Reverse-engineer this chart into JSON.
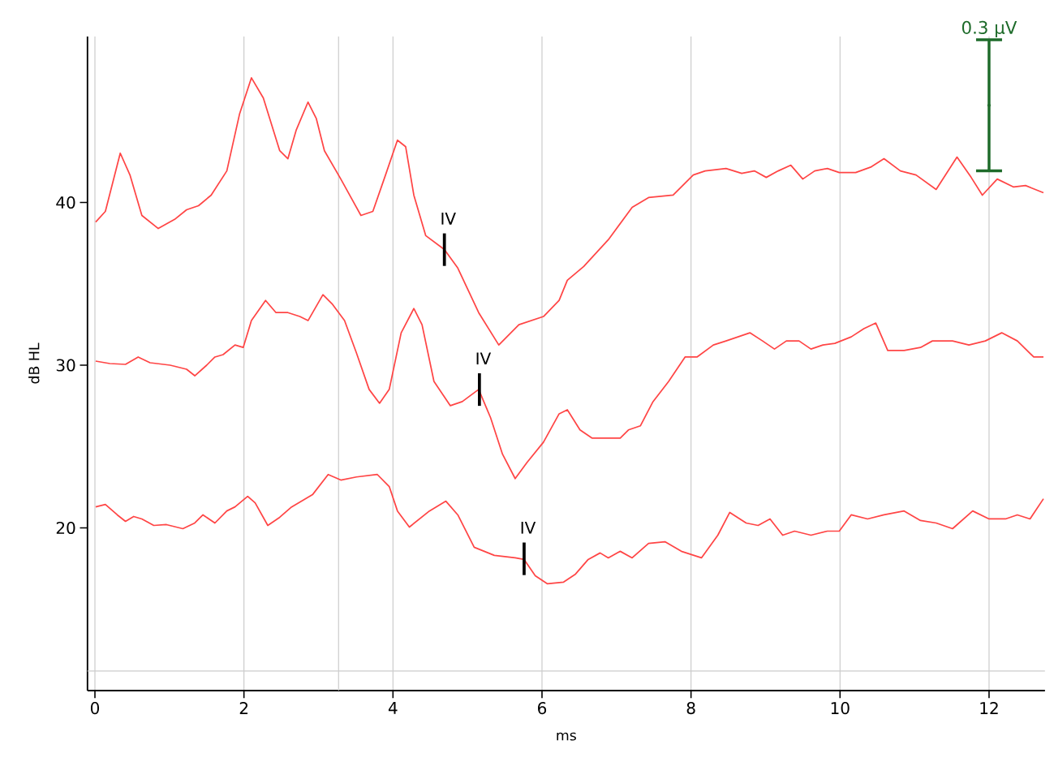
{
  "chart_data": {
    "type": "line",
    "xlabel": "ms",
    "ylabel": "dB HL",
    "xlim": [
      -0.1,
      12.75
    ],
    "ylim": [
      10,
      50.2
    ],
    "xticks": [
      0,
      2,
      4,
      6,
      8,
      10,
      12
    ],
    "yticks": [
      20,
      30,
      40
    ],
    "grid": "x",
    "marker": "none",
    "line_style": "solid",
    "series": [
      {
        "color": "#ff4545",
        "x": [
          0.01,
          0.14,
          0.34,
          0.47,
          0.63,
          0.85,
          1.07,
          1.23,
          1.39,
          1.56,
          1.77,
          1.94,
          2.1,
          2.26,
          2.48,
          2.59,
          2.7,
          2.86,
          2.97,
          3.08,
          3.3,
          3.57,
          3.73,
          3.9,
          4.06,
          4.17,
          4.28,
          4.44,
          4.69,
          4.87,
          5.15,
          5.42,
          5.69,
          6.02,
          6.23,
          6.34,
          6.56,
          6.89,
          7.21,
          7.43,
          7.76,
          8.03,
          8.19,
          8.47,
          8.68,
          8.85,
          9.01,
          9.17,
          9.34,
          9.5,
          9.66,
          9.83,
          9.99,
          10.21,
          10.42,
          10.59,
          10.81,
          11.02,
          11.29,
          11.57,
          11.76,
          11.91,
          12.11,
          12.33,
          12.49,
          12.73
        ],
        "values": [
          38.8,
          39.45,
          43.03,
          41.69,
          39.2,
          38.4,
          38.96,
          39.55,
          39.8,
          40.45,
          41.94,
          45.42,
          47.66,
          46.42,
          43.18,
          42.69,
          44.43,
          46.17,
          45.17,
          43.18,
          41.44,
          39.2,
          39.45,
          41.69,
          43.83,
          43.43,
          40.45,
          37.96,
          37.11,
          35.97,
          33.23,
          31.24,
          32.49,
          32.99,
          33.98,
          35.22,
          36.07,
          37.71,
          39.7,
          40.3,
          40.45,
          41.69,
          41.94,
          42.09,
          41.79,
          41.94,
          41.54,
          41.94,
          42.29,
          41.44,
          41.94,
          42.09,
          41.84,
          41.84,
          42.19,
          42.69,
          41.94,
          41.69,
          40.8,
          42.79,
          41.54,
          40.45,
          41.44,
          40.95,
          41.04,
          40.6
        ]
      },
      {
        "color": "#ff4545",
        "x": [
          0.01,
          0.2,
          0.41,
          0.58,
          0.74,
          1.01,
          1.23,
          1.34,
          1.5,
          1.61,
          1.72,
          1.88,
          1.99,
          2.1,
          2.29,
          2.43,
          2.59,
          2.75,
          2.86,
          3.06,
          3.19,
          3.35,
          3.51,
          3.68,
          3.82,
          3.95,
          4.11,
          4.28,
          4.39,
          4.55,
          4.77,
          4.93,
          5.15,
          5.31,
          5.47,
          5.64,
          5.8,
          6.02,
          6.23,
          6.34,
          6.51,
          6.67,
          6.89,
          7.05,
          7.16,
          7.32,
          7.49,
          7.7,
          7.92,
          8.08,
          8.3,
          8.47,
          8.63,
          8.79,
          8.96,
          9.12,
          9.28,
          9.45,
          9.61,
          9.77,
          9.93,
          10.15,
          10.32,
          10.48,
          10.64,
          10.86,
          11.08,
          11.24,
          11.51,
          11.73,
          11.95,
          12.17,
          12.38,
          12.6,
          12.73
        ],
        "values": [
          30.25,
          30.1,
          30.05,
          30.5,
          30.15,
          30.0,
          29.75,
          29.35,
          30.0,
          30.5,
          30.65,
          31.24,
          31.09,
          32.74,
          33.98,
          33.23,
          33.23,
          32.99,
          32.74,
          34.33,
          33.73,
          32.74,
          30.75,
          28.51,
          27.66,
          28.51,
          31.99,
          33.48,
          32.49,
          29.0,
          27.51,
          27.76,
          28.51,
          26.77,
          24.53,
          23.03,
          24.03,
          25.27,
          27.01,
          27.26,
          26.02,
          25.52,
          25.52,
          25.52,
          26.02,
          26.27,
          27.76,
          29.0,
          30.5,
          30.5,
          31.24,
          31.49,
          31.74,
          31.99,
          31.49,
          30.99,
          31.49,
          31.49,
          30.99,
          31.24,
          31.34,
          31.74,
          32.24,
          32.59,
          30.9,
          30.9,
          31.09,
          31.49,
          31.49,
          31.24,
          31.49,
          31.99,
          31.49,
          30.5,
          30.5
        ]
      },
      {
        "color": "#ff4545",
        "x": [
          0.01,
          0.14,
          0.3,
          0.41,
          0.52,
          0.63,
          0.79,
          0.96,
          1.18,
          1.34,
          1.45,
          1.61,
          1.77,
          1.88,
          2.05,
          2.15,
          2.32,
          2.48,
          2.64,
          2.92,
          3.13,
          3.3,
          3.51,
          3.79,
          3.95,
          4.06,
          4.22,
          4.49,
          4.71,
          4.87,
          5.09,
          5.36,
          5.64,
          5.76,
          5.91,
          6.07,
          6.29,
          6.45,
          6.62,
          6.78,
          6.89,
          7.05,
          7.21,
          7.43,
          7.65,
          7.87,
          8.14,
          8.36,
          8.52,
          8.74,
          8.9,
          9.06,
          9.23,
          9.39,
          9.61,
          9.83,
          9.99,
          10.15,
          10.37,
          10.59,
          10.86,
          11.08,
          11.29,
          11.51,
          11.78,
          12.0,
          12.22,
          12.38,
          12.55,
          12.73
        ],
        "values": [
          21.29,
          21.44,
          20.8,
          20.4,
          20.7,
          20.55,
          20.15,
          20.2,
          19.95,
          20.3,
          20.8,
          20.3,
          21.04,
          21.29,
          21.94,
          21.54,
          20.15,
          20.65,
          21.29,
          22.04,
          23.28,
          22.94,
          23.13,
          23.28,
          22.54,
          21.04,
          20.05,
          21.04,
          21.64,
          20.8,
          18.81,
          18.31,
          18.16,
          18.06,
          17.06,
          16.57,
          16.67,
          17.16,
          18.06,
          18.46,
          18.16,
          18.56,
          18.16,
          19.05,
          19.15,
          18.56,
          18.16,
          19.55,
          20.95,
          20.3,
          20.15,
          20.55,
          19.55,
          19.8,
          19.55,
          19.8,
          19.8,
          20.8,
          20.55,
          20.8,
          21.04,
          20.45,
          20.3,
          19.95,
          21.04,
          20.55,
          20.55,
          20.8,
          20.55,
          21.79
        ]
      },
      {
        "type": "scatter",
        "color": "#1e6b2a",
        "x": [
          12
        ],
        "values": [
          45.97
        ],
        "errors": [
          4.03
        ]
      }
    ],
    "annotations": [
      {
        "text": "IV",
        "x": 4.69,
        "y": 37.1
      },
      {
        "text": "IV",
        "x": 5.16,
        "y": 28.5
      },
      {
        "text": "IV",
        "x": 5.76,
        "y": 18.1
      },
      {
        "text": "0.3 µV",
        "x": 12,
        "y": 50
      }
    ],
    "ref_lines": [
      {
        "axis": "x",
        "value": 3.27,
        "color": "#cccccc"
      },
      {
        "axis": "y",
        "value": 11.2,
        "color": "#cccccc"
      }
    ]
  }
}
